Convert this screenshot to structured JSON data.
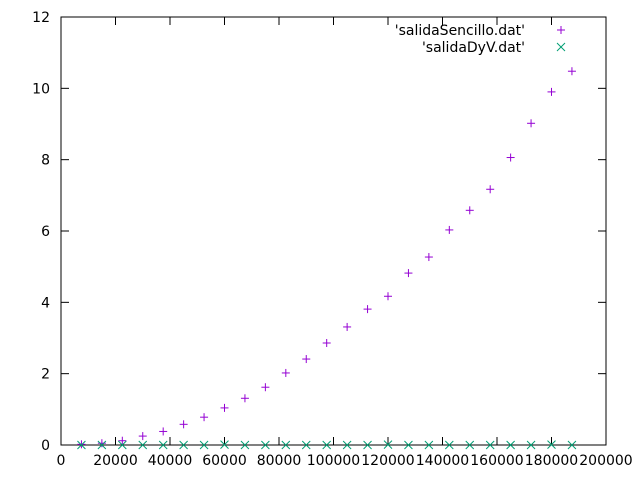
{
  "chart_data": {
    "type": "scatter",
    "title": "",
    "xlabel": "",
    "ylabel": "",
    "xlim": [
      0,
      200000
    ],
    "ylim": [
      0,
      12
    ],
    "x_ticks": [
      0,
      20000,
      40000,
      60000,
      80000,
      100000,
      120000,
      140000,
      160000,
      180000,
      200000
    ],
    "x_tick_labels": [
      "0",
      "20000",
      "40000",
      "60000",
      "80000",
      "100000",
      "120000",
      "140000",
      "160000",
      "180000",
      "200000"
    ],
    "y_ticks": [
      0,
      2,
      4,
      6,
      8,
      10,
      12
    ],
    "y_tick_labels": [
      "0",
      "2",
      "4",
      "6",
      "8",
      "10",
      "12"
    ],
    "grid": false,
    "legend_position": "top-right",
    "series": [
      {
        "name": "'salidaSencillo.dat'",
        "marker": "plus",
        "color": "#9400d3",
        "x": [
          7500,
          15000,
          22500,
          30000,
          37500,
          45000,
          52500,
          60000,
          67500,
          75000,
          82500,
          90000,
          97500,
          105000,
          112500,
          120000,
          127500,
          135000,
          142500,
          150000,
          157500,
          165000,
          172500,
          180000,
          187500
        ],
        "y": [
          0.02,
          0.05,
          0.12,
          0.25,
          0.38,
          0.58,
          0.78,
          1.04,
          1.31,
          1.62,
          2.02,
          2.41,
          2.86,
          3.31,
          3.81,
          4.17,
          4.82,
          5.27,
          6.03,
          6.58,
          7.17,
          8.06,
          9.02,
          9.9,
          10.48
        ]
      },
      {
        "name": "'salidaDyV.dat'",
        "marker": "cross",
        "color": "#009e73",
        "x": [
          7500,
          15000,
          22500,
          30000,
          37500,
          45000,
          52500,
          60000,
          67500,
          75000,
          82500,
          90000,
          97500,
          105000,
          112500,
          120000,
          127500,
          135000,
          142500,
          150000,
          157500,
          165000,
          172500,
          180000,
          187500
        ],
        "y": [
          0.0,
          0.0,
          0.0,
          0.0,
          0.0,
          0.0,
          0.0,
          0.01,
          0.0,
          0.0,
          0.0,
          0.0,
          0.0,
          0.0,
          0.0,
          0.01,
          0.0,
          0.0,
          0.0,
          0.0,
          0.0,
          0.0,
          0.0,
          0.01,
          0.0
        ]
      }
    ]
  }
}
